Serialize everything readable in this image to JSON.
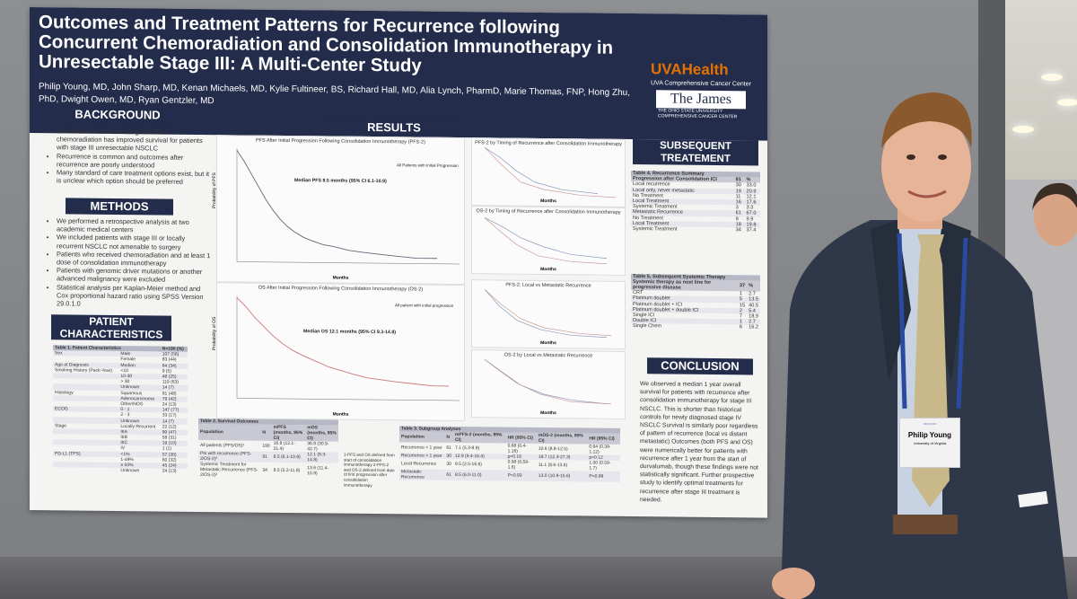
{
  "poster": {
    "title": "Outcomes and Treatment Patterns for Recurrence following Concurrent Chemoradiation and Consolidation Immunotherapy in Unresectable Stage III: A Multi-Center Study",
    "authors": "Philip Young, MD, John Sharp, MD, Kenan Michaels, MD, Kylie Fultineer, BS, Richard Hall, MD, Alia Lynch, PharmD, Marie Thomas, FNP, Hong Zhu, PhD, Dwight Owen, MD, Ryan Gentzler, MD",
    "logo_uva": "UVAHealth",
    "logo_uva_sub": "UVA Comprehensive Cancer Center",
    "logo_james": "The James",
    "logo_james_sub": "THE OHIO STATE UNIVERSITY COMPREHENSIVE CANCER CENTER",
    "background_head": "BACKGROUND",
    "background": [
      "Consolidation durvalumab given after chemoradiation has improved survival for patients with stage III unresectable NSCLC",
      "Recurrence is common and outcomes after recurrence are poorly understood",
      "Many standard of care treatment options exist, but it is unclear which option should be preferred"
    ],
    "methods_head": "METHODS",
    "methods": [
      "We performed a retrospective analysis at two academic medical centers",
      "We included patients with stage III or locally recurrent NSCLC not amenable to surgery",
      "Patients who received chemoradiation and at least 1 dose of consolidation immunotherapy",
      "Patients with genomic driver mutations or another advanced malignancy were excluded",
      "Statistical analysis per Kaplan-Meier method and Cox proportional hazard ratio using SPSS Version 29.0.1.0"
    ],
    "patient_head": "PATIENT CHARACTERISTICS",
    "table1": {
      "caption": "Table 1. Patient Characteristics",
      "caption_n": "N=190 (%)",
      "rows": [
        [
          "Sex",
          "Male",
          "107 (56)"
        ],
        [
          "",
          "Female",
          "83 (44)"
        ],
        [
          "Age at Diagnosis",
          "Median",
          "64 (34)"
        ],
        [
          "Smoking History (Pack-Year)",
          "<10",
          "9 (5)"
        ],
        [
          "",
          "10-30",
          "48 (25)"
        ],
        [
          "",
          "> 30",
          "119 (63)"
        ],
        [
          "",
          "Unknown",
          "14 (7)"
        ],
        [
          "Histology",
          "Squamous",
          "91 (48)"
        ],
        [
          "",
          "Adenocarcinoma",
          "79 (42)"
        ],
        [
          "",
          "Other/NOS",
          "24 (13)"
        ],
        [
          "ECOG",
          "0 - 1",
          "147 (77)"
        ],
        [
          "",
          "2 - 3",
          "33 (17)"
        ],
        [
          "",
          "Unknown",
          "14 (7)"
        ],
        [
          "Stage",
          "Locally Recurrent",
          "22 (12)"
        ],
        [
          "",
          "IIIA",
          "90 (47)"
        ],
        [
          "",
          "IIIB",
          "58 (31)"
        ],
        [
          "",
          "IIIC",
          "19 (10)"
        ],
        [
          "",
          "IV",
          "1 (1)"
        ],
        [
          "PD-L1 (TPS)",
          "<1%",
          "57 (30)"
        ],
        [
          "",
          "1-49%",
          "60 (32)"
        ],
        [
          "",
          "≥ 50%",
          "45 (24)"
        ],
        [
          "",
          "Unknown",
          "24 (13)"
        ]
      ]
    },
    "results_head": "RESULTS",
    "pfs_plot": {
      "title": "PFS After Initial Progression Following Consolidation Immunotherapy (PFS-2)",
      "note": "Median PFS 8.5 months (95% CI 6.1-10.9)",
      "legend": "All Patients with Initial Progression",
      "ylabel": "Probability of PFS",
      "xlabel": "Months"
    },
    "os_plot": {
      "title": "OS After Initial Progression Following Consolidation Immunotherapy (OS-2)",
      "note": "Median OS 12.1 months (95% CI 9.3-14.8)",
      "legend": "All patient with initial progression",
      "ylabel": "Probability of OS",
      "xlabel": "Months"
    },
    "small_plots": [
      {
        "title": "PFS-2 by Timing of Recurrence after Consolidation Immunotherapy",
        "xlabel": "Months"
      },
      {
        "title": "OS-2 by Timing of Recurrence after Consolidation Immunotherapy",
        "xlabel": "Months"
      },
      {
        "title": "PFS-2: Local vs Metastatic Recurrence",
        "xlabel": "Months"
      },
      {
        "title": "OS-2 by Local vs Metastatic Recurrence",
        "xlabel": "Months"
      }
    ],
    "table2": {
      "caption": "Table 2. Survival Outcomes",
      "header": [
        "Population",
        "N",
        "mPFS (months, 95% CI)",
        "mOS (months, 95% CI)"
      ],
      "rows": [
        [
          "All patients (PFS/OS)¹",
          "190",
          "16.8 (12.1-21.4)",
          "36.8 (30.9-42.7)"
        ],
        [
          "Pts with recurrence (PFS-2/OS-2)²",
          "91",
          "8.5 (6.1-10.9)",
          "12.1 (9.3-14.8)"
        ],
        [
          "Systemic Treatment for Metastatic Recurrence (PFS-2/OS-2)²",
          "34",
          "8.5 (5.2-11.8)",
          "13.6 (11.4-15.9)"
        ]
      ],
      "footnote": "1-PFS and OS defined from start of consolidation immunotherapy 2-PFS-2 and OS-2 defined from date of first progression after consolidation immunotherapy"
    },
    "table3": {
      "caption": "Table 3. Subgroup Analyses",
      "header": [
        "Population",
        "N",
        "mPFS-2 (months, 95% CI)",
        "HR (95% CI)",
        "mOS-2 (months, 95% CI)",
        "HR (95% CI)"
      ],
      "rows": [
        [
          "Recurrence < 1 year",
          "61",
          "7.1 (5.3-8.9)",
          "0.68 (0.4-1.16)",
          "10.6 (8.8-12.5)",
          "0.64 (0.39-1.12)"
        ],
        [
          "Recurrence > 1 year",
          "30",
          "12.9 (9.4-16.4)",
          "p=0.16",
          "19.7 (12.3-27.3)",
          "p=0.12"
        ],
        [
          "Local Recurrence",
          "30",
          "9.5 (2.5-16.6)",
          "0.98 (0.59-1.6)",
          "11.1 (8.6-13.6)",
          "1.00 (0.59-1.7)"
        ],
        [
          "Metastatic Recurrence",
          "61",
          "8.5 (6.0-11.0)",
          "P=0.93",
          "13.0 (10.9-15.6)",
          "P=0.99"
        ]
      ]
    },
    "subsequent_head": "SUBSEQUENT TREATEMENT",
    "table4": {
      "caption": "Table 4. Recurrence Summary",
      "header": [
        "Progression after Consolidation ICI",
        "91",
        "%"
      ],
      "rows": [
        [
          "Local recurrence",
          "30",
          "33.0"
        ],
        [
          "Local only, never metastatic",
          "19",
          "20.9"
        ],
        [
          "No Treatment",
          "11",
          "12.1"
        ],
        [
          "Local Treatment",
          "16",
          "17.6"
        ],
        [
          "Systemic Treatment",
          "3",
          "3.3"
        ],
        [
          "Metastatic Recurrence",
          "61",
          "67.0"
        ],
        [
          "No Treatment",
          "9",
          "9.9"
        ],
        [
          "Local Treatment",
          "18",
          "19.8"
        ],
        [
          "Systemic Treatment",
          "34",
          "37.4"
        ]
      ]
    },
    "table5": {
      "caption": "Table 5. Subsequent Systemic Therapy",
      "header": [
        "Systemic therapy as next line for progressive disease",
        "37",
        "%"
      ],
      "rows": [
        [
          "CRT",
          "1",
          "2.7"
        ],
        [
          "Platinum doublet",
          "5",
          "13.5"
        ],
        [
          "Platinum doublet + ICI",
          "15",
          "40.5"
        ],
        [
          "Platinum doublet + double ICI",
          "2",
          "5.4"
        ],
        [
          "Single ICI",
          "7",
          "18.9"
        ],
        [
          "Double ICI",
          "1",
          "2.7"
        ],
        [
          "Single Chem",
          "6",
          "16.2"
        ]
      ]
    },
    "conclusion_head": "CONCLUSION",
    "conclusion": "We observed a median 1 year overall survival for patients with recurrence after consolidation immunotherapy for stage III NSCLC. This is shorter than historical controls for newly diagnosed stage IV NSCLC Survival is similarly poor regardless of pattern of recurrence (local vs distant metastatic) Outcomes (both PFS and OS) were numerically better for patients with recurrence after 1 year from the start of durvalumab, though these findings were not statistically significant. Further prospective study to identify optimal treatments for recurrence after stage III treatment is needed."
  },
  "badge": {
    "name": "Philip Young",
    "affil": "University of Virginia"
  },
  "colors": {
    "poster_navy": "#232d4b",
    "uva_orange": "#e57200",
    "suit": "#2f3848",
    "tie": "#c9b98a"
  }
}
